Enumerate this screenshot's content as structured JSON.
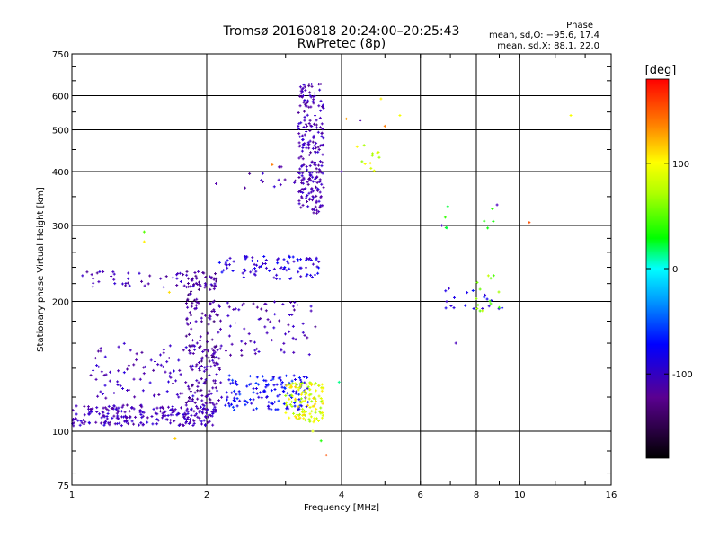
{
  "header": {
    "title_line1": "Tromsø 20160818 20:24:00–20:25:43",
    "title_line2": "RwPretec (8p)",
    "phase_title": "Phase",
    "phase_stats_O": "mean, sd,O: −95.6, 17.4",
    "phase_stats_X": "mean, sd,X:  88.1, 22.0"
  },
  "colorbar": {
    "label": "[deg]",
    "ticks": [
      100,
      0,
      -100
    ],
    "range": [
      -180,
      180
    ],
    "palette": "rainbow"
  },
  "chart_data": {
    "type": "scatter",
    "title": "",
    "xlabel": "Frequency [MHz]",
    "ylabel": "Stationary phase Virtual Height [km]",
    "x_scale": "log",
    "y_scale": "log",
    "xlim": [
      1,
      16
    ],
    "ylim": [
      75,
      750
    ],
    "x_ticks": [
      1,
      2,
      4,
      6,
      8,
      10,
      16
    ],
    "y_ticks": [
      75,
      100,
      200,
      300,
      400,
      500,
      600,
      750
    ],
    "x_grid": [
      2,
      4,
      6,
      8,
      10
    ],
    "y_grid": [
      100,
      200,
      300,
      400,
      500,
      600
    ],
    "color_variable": "Phase [deg]",
    "clusters": [
      {
        "x_range": [
          1.0,
          2.1
        ],
        "y_range": [
          103,
          115
        ],
        "phase": -110,
        "count": 240
      },
      {
        "x_range": [
          1.1,
          2.2
        ],
        "y_range": [
          112,
          160
        ],
        "phase": -110,
        "count": 120
      },
      {
        "x_range": [
          1.8,
          2.15
        ],
        "y_range": [
          115,
          235
        ],
        "phase": -125,
        "count": 180
      },
      {
        "x_range": [
          2.2,
          3.4
        ],
        "y_range": [
          112,
          135
        ],
        "phase": -75,
        "count": 140
      },
      {
        "x_range": [
          2.2,
          3.5
        ],
        "y_range": [
          150,
          200
        ],
        "phase": -115,
        "count": 70
      },
      {
        "x_range": [
          1.05,
          2.1
        ],
        "y_range": [
          215,
          235
        ],
        "phase": -115,
        "count": 55
      },
      {
        "x_range": [
          2.1,
          3.6
        ],
        "y_range": [
          225,
          255
        ],
        "phase": -90,
        "count": 90
      },
      {
        "x_range": [
          3.0,
          3.65
        ],
        "y_range": [
          105,
          130
        ],
        "phase": 110,
        "count": 120
      },
      {
        "x_range": [
          3.2,
          3.65
        ],
        "y_range": [
          320,
          640
        ],
        "phase": -115,
        "count": 230
      },
      {
        "x_range": [
          2.4,
          3.2
        ],
        "y_range": [
          360,
          420
        ],
        "phase": -115,
        "count": 12
      },
      {
        "x_range": [
          4.3,
          5.0
        ],
        "y_range": [
          390,
          470
        ],
        "phase": 110,
        "count": 12
      },
      {
        "x_range": [
          6.7,
          9.3
        ],
        "y_range": [
          190,
          215
        ],
        "phase": -85,
        "count": 20
      },
      {
        "x_range": [
          7.8,
          9.0
        ],
        "y_range": [
          190,
          230
        ],
        "phase": 85,
        "count": 14
      },
      {
        "x_range": [
          6.8,
          8.8
        ],
        "y_range": [
          295,
          335
        ],
        "phase": 50,
        "count": 8
      }
    ],
    "points": [
      {
        "x": 1.45,
        "y": 290,
        "phase": 75
      },
      {
        "x": 1.45,
        "y": 275,
        "phase": 120
      },
      {
        "x": 1.65,
        "y": 210,
        "phase": 125
      },
      {
        "x": 1.7,
        "y": 96,
        "phase": 130
      },
      {
        "x": 2.1,
        "y": 375,
        "phase": -120
      },
      {
        "x": 2.8,
        "y": 415,
        "phase": 150
      },
      {
        "x": 2.9,
        "y": 410,
        "phase": -120
      },
      {
        "x": 3.45,
        "y": 100,
        "phase": 110
      },
      {
        "x": 3.6,
        "y": 95,
        "phase": 60
      },
      {
        "x": 3.7,
        "y": 88,
        "phase": 160
      },
      {
        "x": 3.95,
        "y": 130,
        "phase": 20
      },
      {
        "x": 4.1,
        "y": 530,
        "phase": 140
      },
      {
        "x": 4.4,
        "y": 525,
        "phase": -120
      },
      {
        "x": 4.9,
        "y": 590,
        "phase": 120
      },
      {
        "x": 5.0,
        "y": 510,
        "phase": 150
      },
      {
        "x": 5.4,
        "y": 540,
        "phase": 115
      },
      {
        "x": 4.0,
        "y": 400,
        "phase": -110
      },
      {
        "x": 6.7,
        "y": 300,
        "phase": -110
      },
      {
        "x": 7.2,
        "y": 160,
        "phase": -110
      },
      {
        "x": 8.9,
        "y": 335,
        "phase": -110
      },
      {
        "x": 10.5,
        "y": 305,
        "phase": 160
      },
      {
        "x": 13.0,
        "y": 540,
        "phase": 115
      }
    ]
  }
}
